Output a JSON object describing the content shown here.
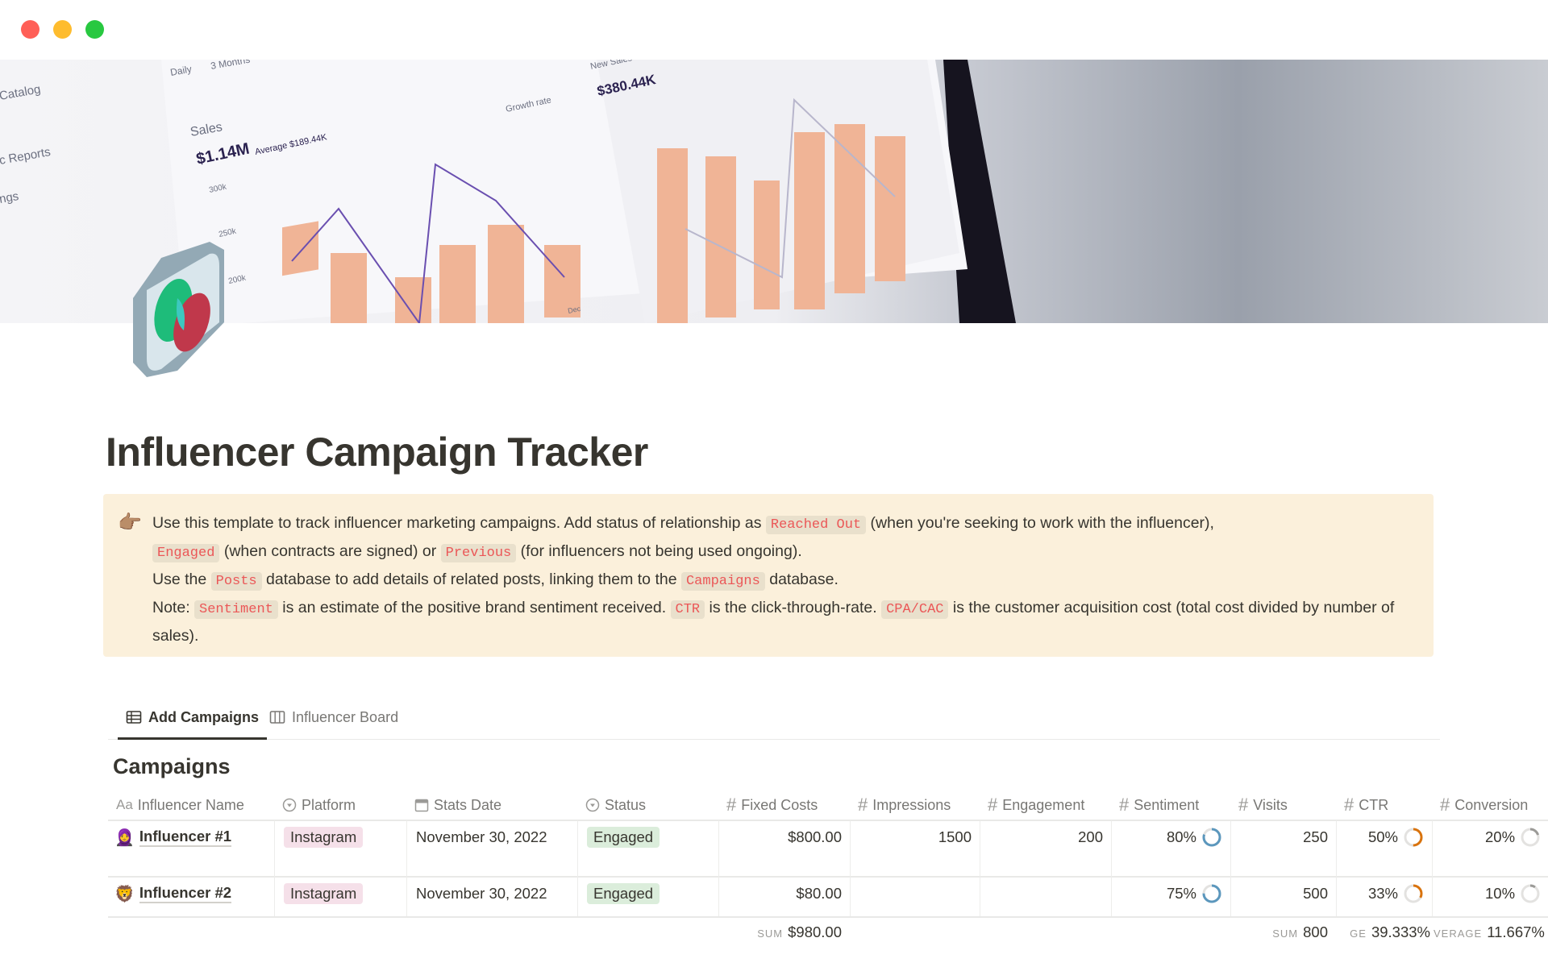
{
  "window": {
    "traffic_lights": [
      "#ff5f57",
      "#febc2e",
      "#28c840"
    ]
  },
  "cover": {
    "image_text": {
      "sidebar": [
        "Catalog",
        "c Reports",
        "ngs"
      ],
      "toggles": [
        "Daily",
        "3 Months"
      ],
      "sales_label": "Sales",
      "sales_value": "$1.14M",
      "sales_average": "Average $189.44K",
      "legend": "Growth rate",
      "axis": [
        "300k",
        "250k",
        "200k"
      ],
      "month": "Dec",
      "new_sales": "New Sales",
      "new_sales_value": "$380.44K"
    }
  },
  "page": {
    "title": "Influencer Campaign Tracker"
  },
  "callout": {
    "icon": "pointing-hand-icon",
    "l1a": "Use this template to track influencer marketing campaigns. Add status of relationship as ",
    "c1": "Reached Out",
    "l1b": " (when you're seeking to work with the influencer),",
    "c2": "Engaged",
    "l2a": " (when contracts are signed) or ",
    "c3": "Previous",
    "l2b": " (for influencers not being used ongoing).",
    "l3a": "Use the ",
    "c4": "Posts",
    "l3b": " database to add details of related posts, linking them to the ",
    "c5": "Campaigns",
    "l3c": " database.",
    "l4a": "Note: ",
    "c6": "Sentiment",
    "l4b": " is an estimate of the positive brand sentiment received. ",
    "c7": "CTR",
    "l4c": " is the click-through-rate. ",
    "c8": "CPA/CAC",
    "l4d": " is the customer acquisition cost (total cost divided by number of sales)."
  },
  "tabs": [
    {
      "label": "Add Campaigns",
      "icon": "table-icon",
      "active": true
    },
    {
      "label": "Influencer Board",
      "icon": "board-icon",
      "active": false
    }
  ],
  "database": {
    "title": "Campaigns"
  },
  "columns": [
    {
      "label": "Influencer Name",
      "icon": "Aa"
    },
    {
      "label": "Platform",
      "icon": "select-icon"
    },
    {
      "label": "Stats Date",
      "icon": "calendar-icon"
    },
    {
      "label": "Status",
      "icon": "select-icon"
    },
    {
      "label": "Fixed Costs",
      "icon": "#"
    },
    {
      "label": "Impressions",
      "icon": "#"
    },
    {
      "label": "Engagement",
      "icon": "#"
    },
    {
      "label": "Sentiment",
      "icon": "#"
    },
    {
      "label": "Visits",
      "icon": "#"
    },
    {
      "label": "CTR",
      "icon": "#"
    },
    {
      "label": "Conversion",
      "icon": "#"
    }
  ],
  "rows": [
    {
      "name": "Influencer #1",
      "avatar": "🧕",
      "platform": "Instagram",
      "date": "November 30, 2022",
      "status": "Engaged",
      "fixed_costs": "$800.00",
      "impressions": "1500",
      "engagement": "200",
      "sentiment": "80%",
      "sentiment_value": 0.8,
      "visits": "250",
      "ctr": "50%",
      "ctr_value": 0.5,
      "conversion": "20%",
      "conversion_value": 0.2
    },
    {
      "name": "Influencer #2",
      "avatar": "🦁",
      "platform": "Instagram",
      "date": "November 30, 2022",
      "status": "Engaged",
      "fixed_costs": "$80.00",
      "impressions": "",
      "engagement": "",
      "sentiment": "75%",
      "sentiment_value": 0.75,
      "visits": "500",
      "ctr": "33%",
      "ctr_value": 0.33,
      "conversion": "10%",
      "conversion_value": 0.1
    }
  ],
  "footer": {
    "fixed_label": "SUM",
    "fixed_value": "$980.00",
    "visits_label": "SUM",
    "visits_value": "800",
    "ctr_label": "GE",
    "ctr_value": "39.333%",
    "conv_label": "VERAGE",
    "conv_value": "11.667%"
  },
  "colors": {
    "callout_bg": "#fbf0db",
    "code_red": "#eb5757",
    "platform_tag": "#f5e0e9",
    "status_tag": "#dbeddb",
    "ring_blue": "#5b97bd",
    "ring_orange": "#d9730d",
    "ring_gray": "#9b9a97"
  }
}
